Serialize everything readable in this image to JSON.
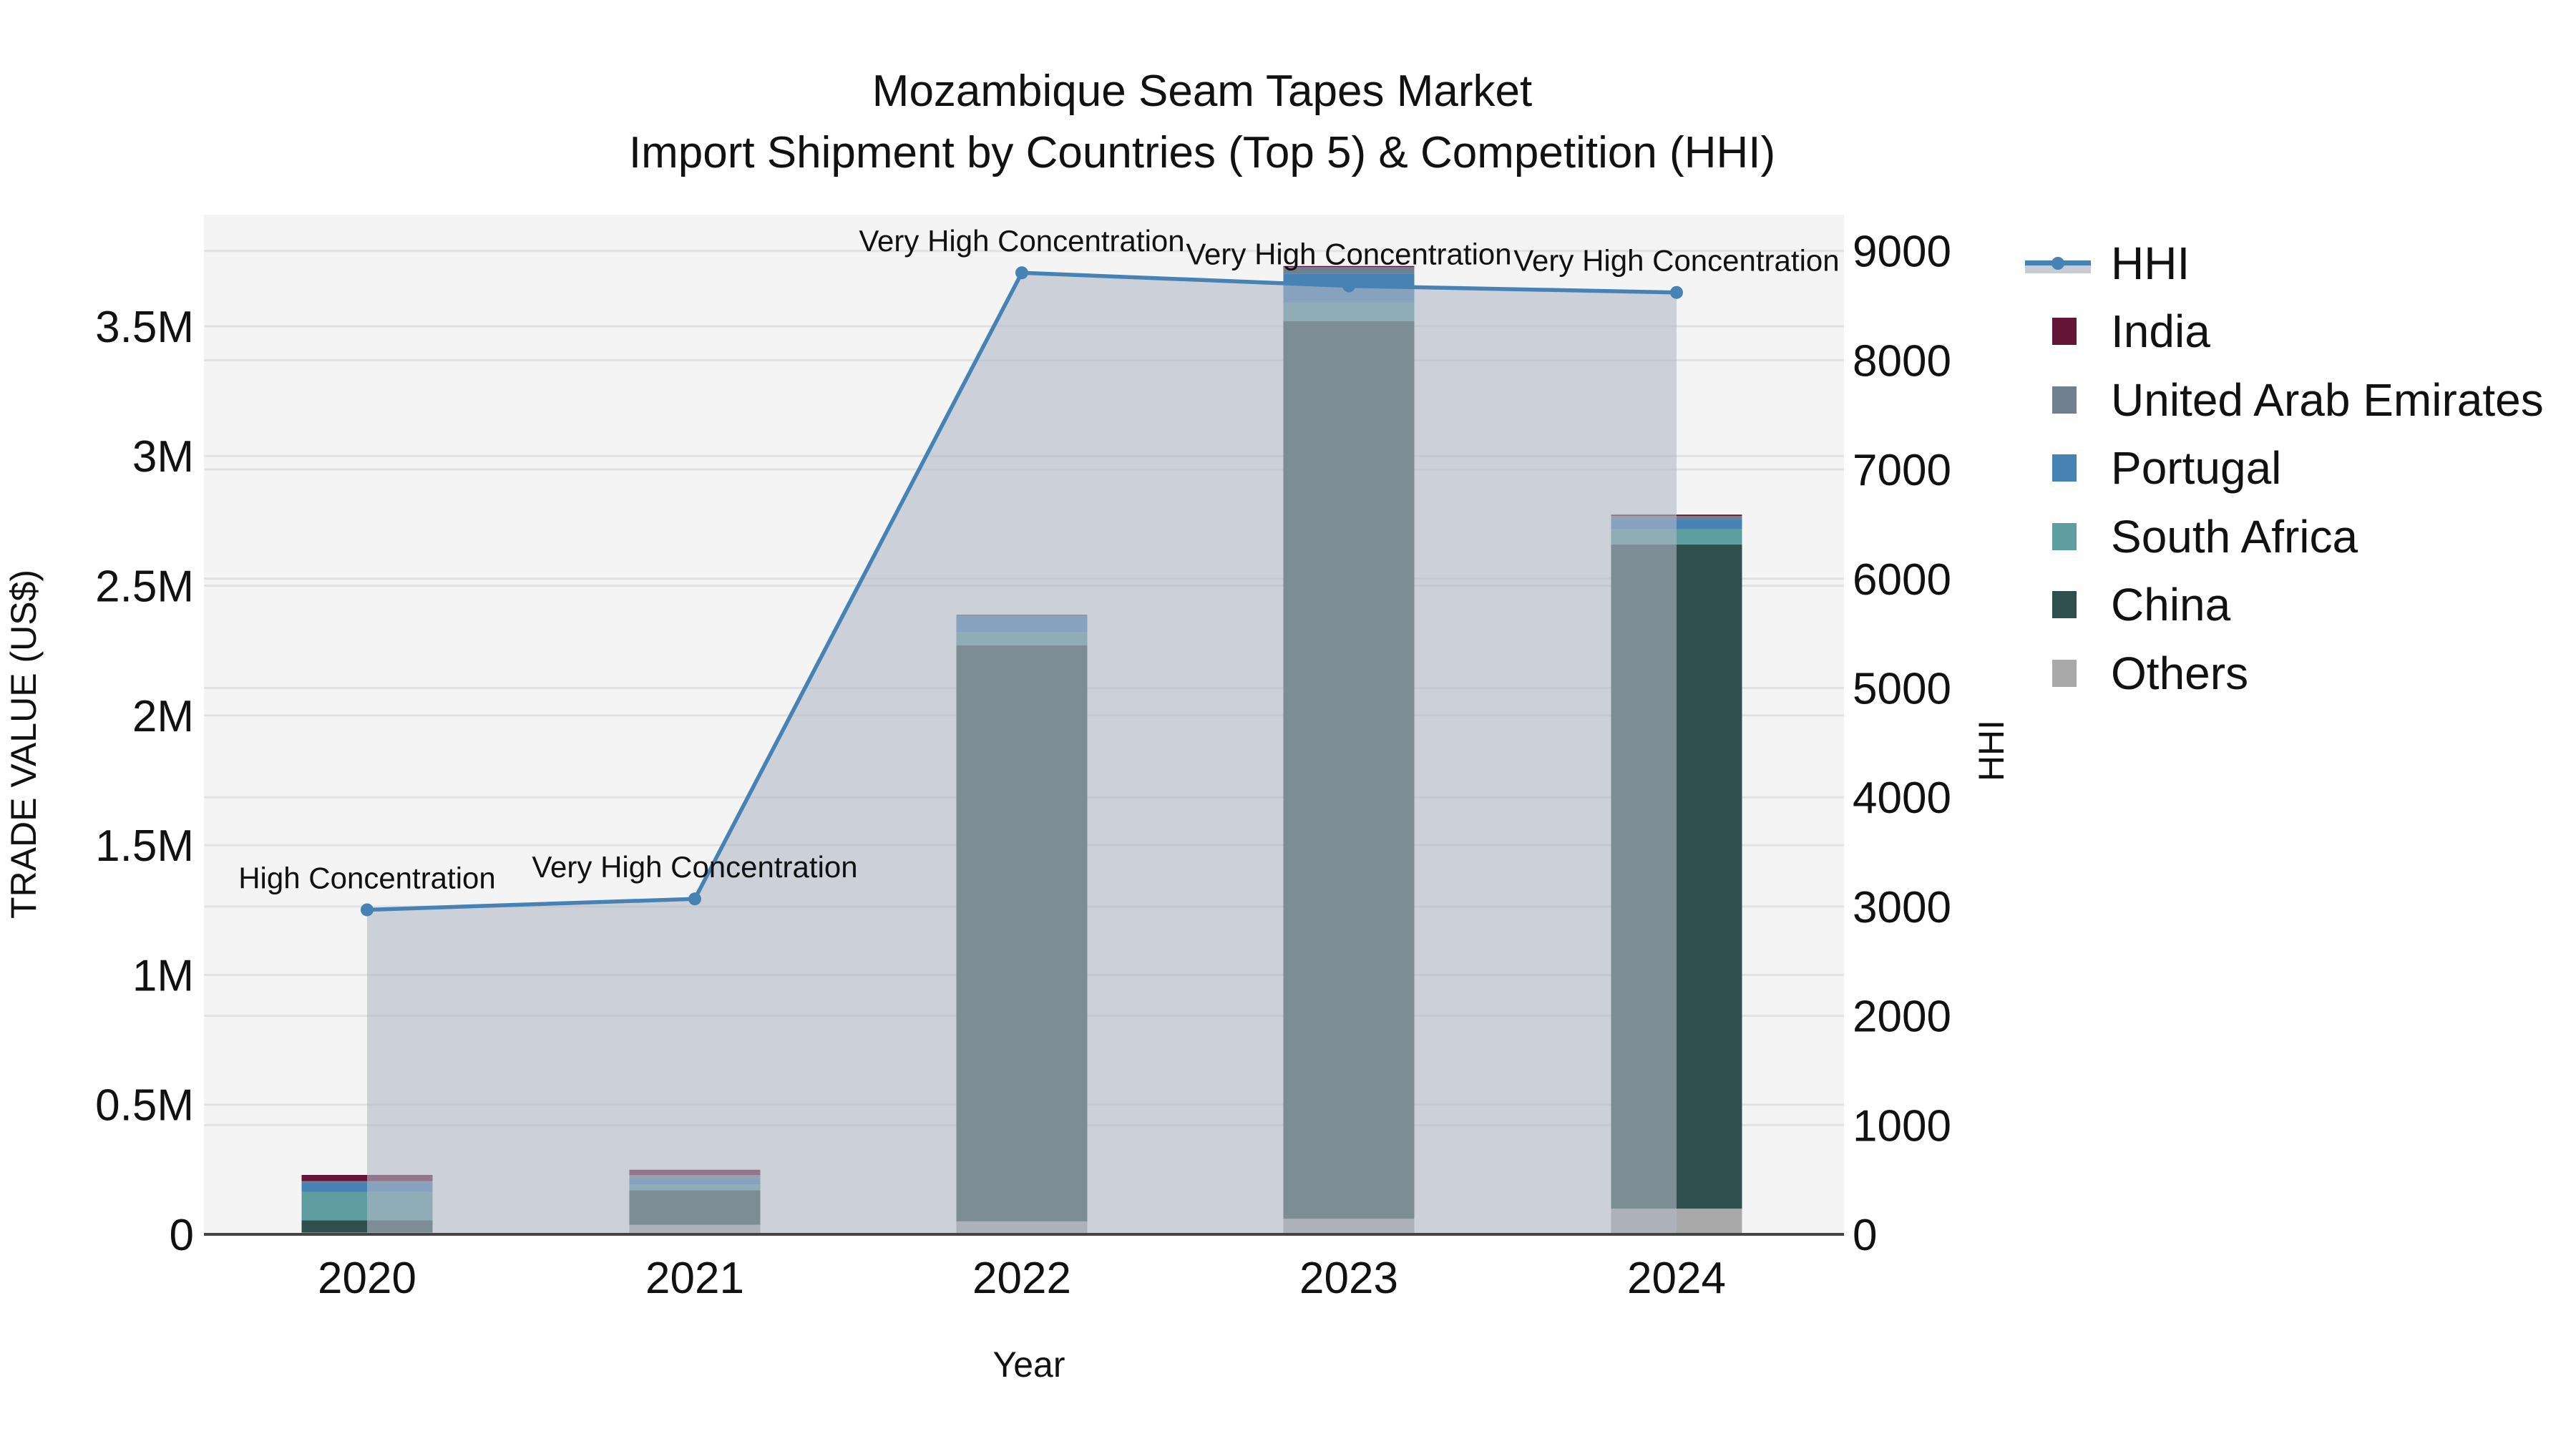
{
  "title": {
    "line1": "Mozambique Seam Tapes Market",
    "line2": "Import Shipment by Countries (Top 5) & Competition (HHI)"
  },
  "axes": {
    "x_title": "Year",
    "y_left_title": "TRADE VALUE (US$)",
    "y_right_title": "HHI",
    "y_left_ticks": [
      "0",
      "0.5M",
      "1M",
      "1.5M",
      "2M",
      "2.5M",
      "3M",
      "3.5M"
    ],
    "y_right_ticks": [
      "0",
      "1000",
      "2000",
      "3000",
      "4000",
      "5000",
      "6000",
      "7000",
      "8000",
      "9000"
    ]
  },
  "legend": {
    "items": [
      {
        "label": "HHI",
        "type": "line",
        "color": "#4682b4"
      },
      {
        "label": "India",
        "type": "bar",
        "color": "#641436"
      },
      {
        "label": "United Arab Emirates",
        "type": "bar",
        "color": "#708090"
      },
      {
        "label": "Portugal",
        "type": "bar",
        "color": "#4682b4"
      },
      {
        "label": "South Africa",
        "type": "bar",
        "color": "#5f9ea0"
      },
      {
        "label": "China",
        "type": "bar",
        "color": "#2f4f4f"
      },
      {
        "label": "Others",
        "type": "bar",
        "color": "#a9a9a9"
      }
    ]
  },
  "colors": {
    "plot_bg": "#f4f4f4",
    "grid": "#e2e2e2",
    "hhi_line": "#4682b4",
    "hhi_fill": "rgba(176,184,198,0.6)"
  },
  "chart_data": {
    "type": "bar",
    "stacked": true,
    "title": "Mozambique Seam Tapes Market — Import Shipment by Countries (Top 5) & Competition (HHI)",
    "xlabel": "Year",
    "ylabel": "TRADE VALUE (US$)",
    "y2label": "HHI",
    "categories": [
      "2020",
      "2021",
      "2022",
      "2023",
      "2024"
    ],
    "ylim": [
      0,
      3930000
    ],
    "y2lim": [
      0,
      9330
    ],
    "series": [
      {
        "name": "Others",
        "color": "#a9a9a9",
        "values": [
          7000,
          37000,
          50000,
          60000,
          99000
        ]
      },
      {
        "name": "China",
        "color": "#2f4f4f",
        "values": [
          47000,
          133000,
          2220000,
          3460000,
          2560000
        ]
      },
      {
        "name": "South Africa",
        "color": "#5f9ea0",
        "values": [
          110000,
          23000,
          50000,
          71000,
          58000
        ]
      },
      {
        "name": "Portugal",
        "color": "#4682b4",
        "values": [
          36000,
          22000,
          63000,
          112000,
          38000
        ]
      },
      {
        "name": "United Arab Emirates",
        "color": "#708090",
        "values": [
          5000,
          13000,
          2000,
          25000,
          14000
        ]
      },
      {
        "name": "India",
        "color": "#641436",
        "values": [
          24000,
          21000,
          3000,
          4000,
          5000
        ]
      }
    ],
    "hhi": {
      "name": "HHI",
      "axis": "right",
      "type": "line+area",
      "values": [
        2970,
        3070,
        8800,
        8680,
        8620
      ],
      "annotations": [
        "High Concentration",
        "Very High Concentration",
        "Very High Concentration",
        "Very High Concentration",
        "Very High Concentration"
      ]
    },
    "legend_position": "right",
    "grid": true
  }
}
